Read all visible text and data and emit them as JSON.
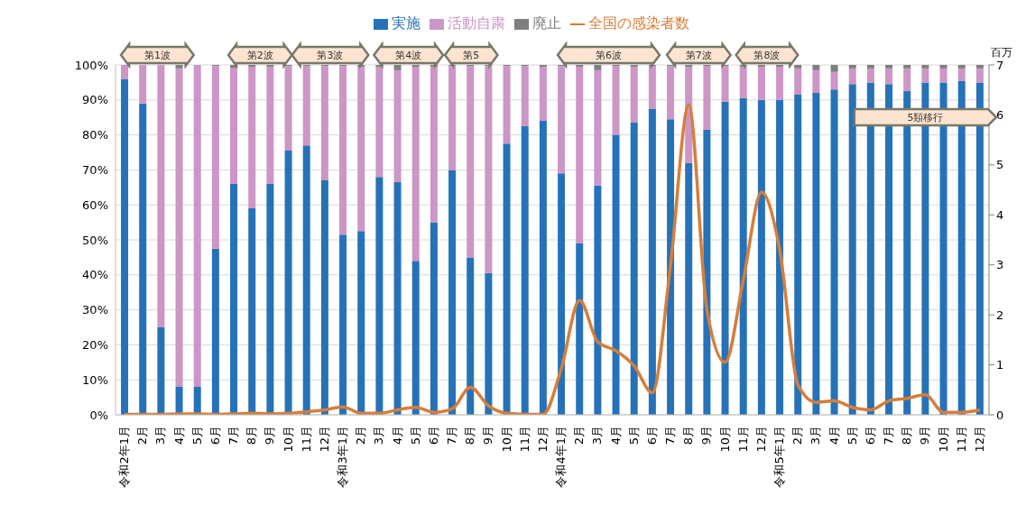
{
  "chart_data": {
    "type": "bar",
    "stacked": true,
    "legend": "top",
    "grid": "y",
    "categories": [
      "令和2年1月",
      "2月",
      "3月",
      "4月",
      "5月",
      "6月",
      "7月",
      "8月",
      "9月",
      "10月",
      "11月",
      "12月",
      "令和3年1月",
      "2月",
      "3月",
      "4月",
      "5月",
      "6月",
      "7月",
      "8月",
      "9月",
      "10月",
      "11月",
      "12月",
      "令和4年1月",
      "2月",
      "3月",
      "4月",
      "5月",
      "6月",
      "7月",
      "8月",
      "9月",
      "10月",
      "11月",
      "12月",
      "令和5年1月",
      "2月",
      "3月",
      "4月",
      "5月",
      "6月",
      "7月",
      "8月",
      "9月",
      "10月",
      "11月",
      "12月"
    ],
    "series": [
      {
        "name": "実施",
        "color": "#2672b8",
        "values": [
          96,
          89,
          25,
          8,
          8,
          47.5,
          66,
          59,
          66,
          75.5,
          77,
          67,
          51.5,
          52.5,
          68,
          66.5,
          44,
          55,
          70,
          45,
          40.5,
          77.5,
          82.5,
          84,
          69,
          49,
          65.5,
          80,
          83.5,
          87.5,
          84.5,
          72,
          81.5,
          89.5,
          90.5,
          90,
          90,
          91.5,
          92,
          93,
          94.5,
          95,
          94.5,
          92.5,
          95,
          95,
          95.5,
          95
        ]
      },
      {
        "name": "活動自粛",
        "color": "#cc96c6",
        "values": [
          4,
          11,
          75,
          91,
          92,
          52.2,
          33.2,
          40.5,
          33.5,
          24.2,
          22.7,
          32.7,
          48.2,
          47,
          31.5,
          32,
          55.5,
          44.5,
          29.7,
          54.7,
          59.2,
          22.2,
          17.2,
          15.5,
          30.7,
          50.5,
          33,
          19.7,
          16,
          12.2,
          15.2,
          27.5,
          18.2,
          10.2,
          9,
          9.5,
          9.5,
          7.5,
          6.5,
          5,
          4.5,
          4,
          4.5,
          6.5,
          4,
          4,
          3.5,
          4
        ]
      },
      {
        "name": "廃止",
        "color": "#7f7f80",
        "values": [
          0,
          0,
          0,
          1,
          0,
          0.3,
          0.8,
          0.5,
          0.5,
          0.3,
          0.3,
          0.3,
          0.3,
          0.5,
          0.5,
          1.5,
          0.5,
          0.5,
          0.3,
          0.3,
          0.3,
          0.3,
          0.3,
          0.5,
          0.3,
          0.5,
          1.5,
          0.3,
          0.5,
          0.3,
          0.3,
          0.5,
          0.3,
          0.3,
          0.5,
          0.5,
          0.5,
          1,
          1.5,
          2,
          1,
          1,
          1,
          1,
          1,
          1,
          1,
          1
        ]
      },
      {
        "name": "全国の感染者数",
        "type": "line",
        "axis": "y2",
        "color": "#d57e3a",
        "values": [
          0.01,
          0.01,
          0.01,
          0.02,
          0.02,
          0.01,
          0.02,
          0.03,
          0.02,
          0.03,
          0.06,
          0.1,
          0.16,
          0.03,
          0.03,
          0.1,
          0.15,
          0.05,
          0.12,
          0.55,
          0.18,
          0.03,
          0.01,
          0.01,
          0.93,
          2.29,
          1.46,
          1.28,
          0.98,
          0.44,
          3.0,
          6.2,
          2.1,
          1.05,
          2.7,
          4.45,
          3.3,
          0.6,
          0.25,
          0.28,
          0.15,
          0.1,
          0.28,
          0.33,
          0.4,
          0.05,
          0.05,
          0.1
        ]
      }
    ],
    "marker": "none",
    "line_style": "solid",
    "ylim": [
      0,
      100
    ],
    "yticks": [
      {
        "value": 0,
        "label": "0%"
      },
      {
        "value": 10,
        "label": "10%"
      },
      {
        "value": 20,
        "label": "20%"
      },
      {
        "value": 30,
        "label": "30%"
      },
      {
        "value": 40,
        "label": "40%"
      },
      {
        "value": 50,
        "label": "50%"
      },
      {
        "value": 60,
        "label": "60%"
      },
      {
        "value": 70,
        "label": "70%"
      },
      {
        "value": 80,
        "label": "80%"
      },
      {
        "value": 90,
        "label": "90%"
      },
      {
        "value": 100,
        "label": "100%"
      }
    ],
    "y2lim": [
      0,
      7
    ],
    "y2ticks": [
      0,
      1,
      2,
      3,
      4,
      5,
      6,
      7
    ],
    "y2label": "百万",
    "annotations": [
      "第1波",
      "第2波",
      "第3波",
      "第4波",
      "第5",
      "第6波",
      "第7波",
      "第8波",
      "5類移行"
    ]
  }
}
